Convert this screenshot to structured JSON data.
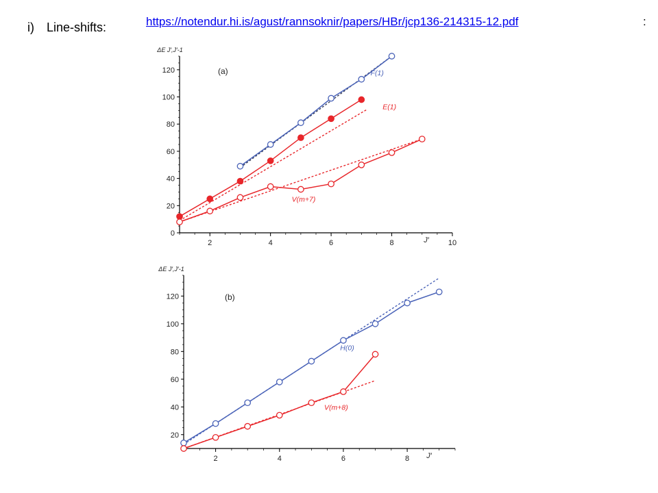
{
  "slide": {
    "bullet_marker": "i)",
    "heading": "Line-shifts:",
    "link_text": "https://notendur.hi.is/agust/rannsoknir/papers/HBr/jcp136-214315-12.pdf",
    "link_suffix": ":"
  },
  "colors": {
    "blue": "#4a63b8",
    "red": "#e8262a",
    "dark": "#333a55",
    "link": "#0000ee"
  },
  "chart_data": [
    {
      "type": "line",
      "panel_label": "(a)",
      "ylabel": "ΔE J′,J′-1",
      "xlabel": "J′",
      "xlim": [
        1,
        10
      ],
      "ylim": [
        0,
        130
      ],
      "x_ticks": [
        2,
        4,
        6,
        8,
        10
      ],
      "y_ticks": [
        0,
        20,
        40,
        60,
        80,
        100,
        120
      ],
      "grid": false,
      "series": [
        {
          "name": "F(1)",
          "color": "blue",
          "marker": "open",
          "x": [
            3,
            4,
            5,
            6,
            7,
            8
          ],
          "y": [
            49,
            65,
            81,
            99,
            113,
            130
          ],
          "fit": {
            "x": [
              3,
              8
            ],
            "y": [
              48,
              130
            ],
            "color": "dark"
          }
        },
        {
          "name": "E(1)",
          "color": "red",
          "marker": "filled",
          "x": [
            1,
            2,
            3,
            4,
            5,
            6,
            7
          ],
          "y": [
            12,
            25,
            38,
            53,
            70,
            84,
            98
          ],
          "fit": {
            "x": [
              1,
              7.2
            ],
            "y": [
              9,
              91
            ],
            "color": "red"
          }
        },
        {
          "name": "V(m+7)",
          "color": "red",
          "marker": "open",
          "x": [
            1,
            2,
            3,
            4,
            5,
            6,
            7,
            8,
            9
          ],
          "y": [
            8,
            16,
            26,
            34,
            32,
            36,
            50,
            59,
            69
          ],
          "fit": {
            "x": [
              1,
              9
            ],
            "y": [
              8,
              69
            ],
            "color": "red"
          }
        }
      ],
      "annotations": [
        {
          "text": "F(1)",
          "x": 7.3,
          "y": 116,
          "color": "blue"
        },
        {
          "text": "E(1)",
          "x": 7.7,
          "y": 91,
          "color": "red"
        },
        {
          "text": "V(m+7)",
          "x": 4.7,
          "y": 23,
          "color": "red"
        }
      ]
    },
    {
      "type": "line",
      "panel_label": "(b)",
      "ylabel": "ΔE J′,J′-1",
      "xlabel": "J′",
      "xlim": [
        1,
        9.5
      ],
      "ylim": [
        10,
        135
      ],
      "x_ticks": [
        2,
        4,
        6,
        8
      ],
      "y_ticks": [
        20,
        40,
        60,
        80,
        100,
        120
      ],
      "grid": false,
      "series": [
        {
          "name": "H(0)",
          "color": "blue",
          "marker": "open",
          "x": [
            1,
            2,
            3,
            4,
            5,
            6,
            7,
            8,
            9
          ],
          "y": [
            14,
            28,
            43,
            58,
            73,
            88,
            100,
            115,
            123
          ],
          "fit": {
            "x": [
              1,
              9
            ],
            "y": [
              13,
              133
            ],
            "color": "blue"
          }
        },
        {
          "name": "V(m+8)",
          "color": "red",
          "marker": "open",
          "x": [
            1,
            2,
            3,
            4,
            5,
            6,
            7
          ],
          "y": [
            10,
            18,
            26,
            34,
            43,
            51,
            78
          ],
          "fit": {
            "x": [
              1,
              7
            ],
            "y": [
              10,
              59
            ],
            "color": "red"
          }
        }
      ],
      "annotations": [
        {
          "text": "H(0)",
          "x": 5.9,
          "y": 81,
          "color": "blue"
        },
        {
          "text": "V(m+8)",
          "x": 5.4,
          "y": 38,
          "color": "red"
        }
      ]
    }
  ]
}
